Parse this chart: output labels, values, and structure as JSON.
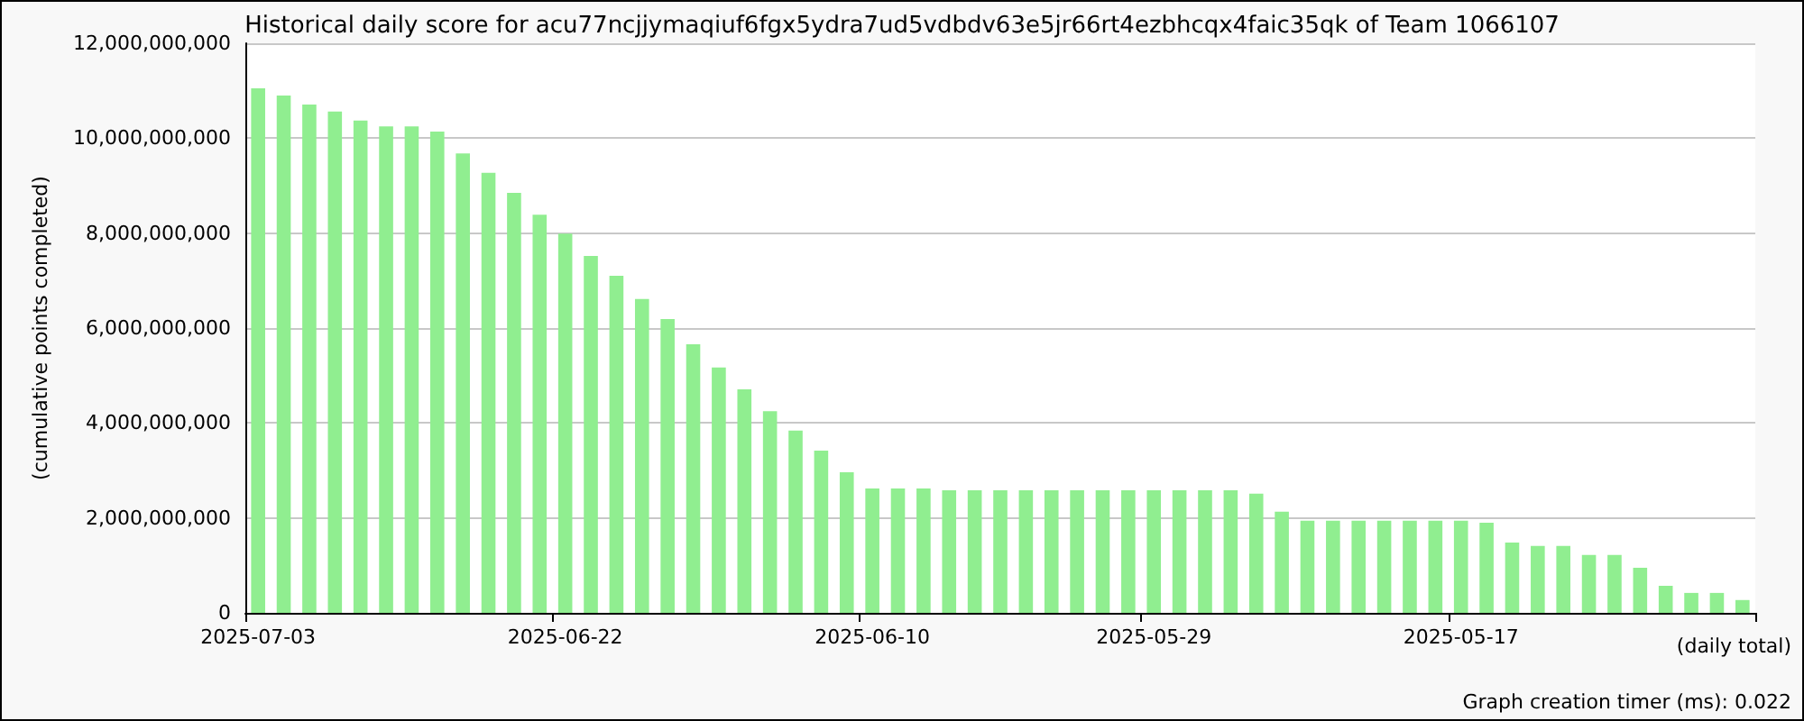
{
  "chart_data": {
    "type": "bar",
    "title": "Historical daily score for acu77ncjjymaqiuf6fgx5ydra7ud5vdbdv63e5jr66rt4ezbhcqx4faic35qk of Team 1066107",
    "xlabel": "(daily total)",
    "ylabel": "(cumulative points completed)",
    "annotations": [
      "Graph creation timer (ms): 0.022"
    ],
    "categories": [
      "2025-07-03",
      null,
      null,
      null,
      null,
      null,
      null,
      null,
      null,
      null,
      null,
      null,
      "2025-06-22",
      null,
      null,
      null,
      null,
      null,
      null,
      null,
      null,
      null,
      null,
      null,
      "2025-06-10",
      null,
      null,
      null,
      null,
      null,
      null,
      null,
      null,
      null,
      null,
      "2025-05-29",
      null,
      null,
      null,
      null,
      null,
      null,
      null,
      null,
      null,
      null,
      null,
      "2025-05-17",
      null,
      null,
      null,
      null,
      null,
      null,
      null,
      null,
      null,
      null,
      null
    ],
    "values": [
      11050000000,
      10900000000,
      10710000000,
      10560000000,
      10370000000,
      10250000000,
      10250000000,
      10140000000,
      9680000000,
      9270000000,
      8850000000,
      8390000000,
      7990000000,
      7520000000,
      7100000000,
      6610000000,
      6190000000,
      5660000000,
      5170000000,
      4710000000,
      4250000000,
      3840000000,
      3420000000,
      2960000000,
      2620000000,
      2620000000,
      2620000000,
      2580000000,
      2580000000,
      2580000000,
      2580000000,
      2580000000,
      2580000000,
      2580000000,
      2580000000,
      2580000000,
      2580000000,
      2580000000,
      2580000000,
      2510000000,
      2130000000,
      1940000000,
      1940000000,
      1940000000,
      1940000000,
      1940000000,
      1940000000,
      1940000000,
      1900000000,
      1480000000,
      1410000000,
      1410000000,
      1220000000,
      1220000000,
      950000000,
      570000000,
      420000000,
      420000000,
      270000000
    ],
    "color": "#90ee90",
    "ylim": [
      0,
      12000000000
    ],
    "yticks": [
      0,
      {
        "value": 2000000000,
        "label": "2,000,000,000"
      },
      {
        "value": 4000000000,
        "label": "4,000,000,000"
      },
      {
        "value": 6000000000,
        "label": "6,000,000,000"
      },
      {
        "value": 8000000000,
        "label": "8,000,000,000"
      },
      {
        "value": 10000000000,
        "label": "10,000,000,000"
      },
      {
        "value": 12000000000,
        "label": "12,000,000,000"
      }
    ],
    "grid": "y"
  }
}
